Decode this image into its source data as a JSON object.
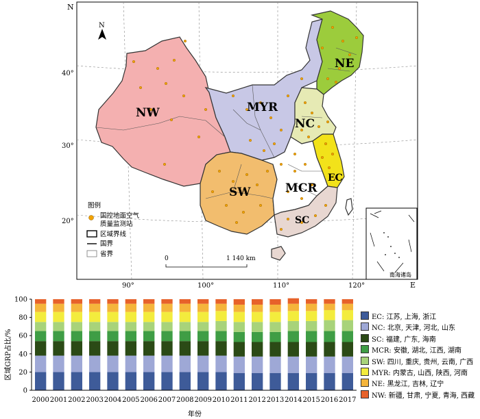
{
  "map": {
    "compass": "N",
    "regions": [
      "NW",
      "MYR",
      "NE",
      "NC",
      "EC",
      "SW",
      "MCR",
      "SC"
    ],
    "lat_labels": [
      "40°",
      "30°",
      "20°"
    ],
    "lon_labels": [
      "90°",
      "100°",
      "110°",
      "120°"
    ],
    "edge_labels": {
      "top": "N",
      "left": "N",
      "right": "E"
    },
    "legend": {
      "title": "图例",
      "items": [
        "国控地面空气",
        "质量监测站",
        "区域界线",
        "国界",
        "省界"
      ]
    },
    "scale": {
      "start": "0",
      "end": "1 140 km"
    },
    "inset_label": "南海诸岛",
    "colors": {
      "NW": "#f4b0b0",
      "MYR": "#c8c8e6",
      "NE": "#9ccc3c",
      "NC": "#e6eab4",
      "EC": "#f2e21a",
      "SW": "#f2bd6e",
      "MCR": "#ffffff",
      "SC": "#e8d7d1",
      "stations": "#f2a200"
    }
  },
  "chart_data": {
    "type": "bar",
    "stacked": true,
    "categories": [
      "2000",
      "2001",
      "2002",
      "2003",
      "2004",
      "2005",
      "2006",
      "2007",
      "2008",
      "2009",
      "2010",
      "2011",
      "2012",
      "2013",
      "2014",
      "2015",
      "2016",
      "2017"
    ],
    "ylabel": "区域GRP占比/%",
    "xlabel": "年份",
    "ylim": [
      0,
      100
    ],
    "yticks": [
      0,
      20,
      40,
      60,
      80,
      100
    ],
    "series": [
      {
        "name": "EC: 江苏, 上海, 浙江",
        "color": "#3e5b99",
        "values": [
          20,
          20,
          20,
          20,
          20,
          20,
          20,
          20,
          20,
          20,
          20,
          19,
          19,
          19,
          19,
          19,
          19,
          19
        ]
      },
      {
        "name": "NC: 北京, 天津, 河北, 山东",
        "color": "#9ea8d6",
        "values": [
          18,
          18,
          18,
          18,
          18,
          18,
          18,
          18,
          18,
          18,
          18,
          18,
          18,
          18,
          18,
          18,
          18,
          18
        ]
      },
      {
        "name": "SC: 福建, 广东, 海南",
        "color": "#2b4a16",
        "values": [
          16,
          16,
          16,
          16,
          16,
          16,
          16,
          16,
          16,
          16,
          16,
          16,
          16,
          16,
          16,
          16,
          16,
          16
        ]
      },
      {
        "name": "MCR: 安徽, 湖北, 江西, 湖南",
        "color": "#3f9d45",
        "values": [
          11,
          11,
          11,
          11,
          11,
          11,
          11,
          11,
          11,
          11,
          11,
          11,
          11,
          11,
          12,
          12,
          12,
          12
        ]
      },
      {
        "name": "SW: 四川, 重庆, 贵州, 云南, 广西",
        "color": "#a8d37a",
        "values": [
          10,
          10,
          10,
          10,
          10,
          10,
          10,
          10,
          10,
          10,
          11,
          11,
          11,
          11,
          11,
          11,
          12,
          12
        ]
      },
      {
        "name": "MYR: 内蒙古, 山西, 陕西, 河南",
        "color": "#f3ec3d",
        "values": [
          11,
          11,
          11,
          11,
          11,
          11,
          11,
          11,
          11,
          11,
          11,
          11,
          11,
          11,
          11,
          11,
          11,
          11
        ]
      },
      {
        "name": "NE: 黑龙江, 吉林, 辽宁",
        "color": "#f5b53b",
        "values": [
          9,
          9,
          9,
          9,
          9,
          9,
          9,
          9,
          9,
          9,
          8,
          8,
          8,
          8,
          8,
          8,
          7,
          7
        ]
      },
      {
        "name": "NW: 新疆, 甘肃, 宁夏, 青海, 西藏",
        "color": "#e7622a",
        "values": [
          5,
          5,
          5,
          5,
          5,
          5,
          5,
          5,
          5,
          5,
          5,
          6,
          6,
          6,
          6,
          5,
          5,
          5
        ]
      }
    ]
  }
}
